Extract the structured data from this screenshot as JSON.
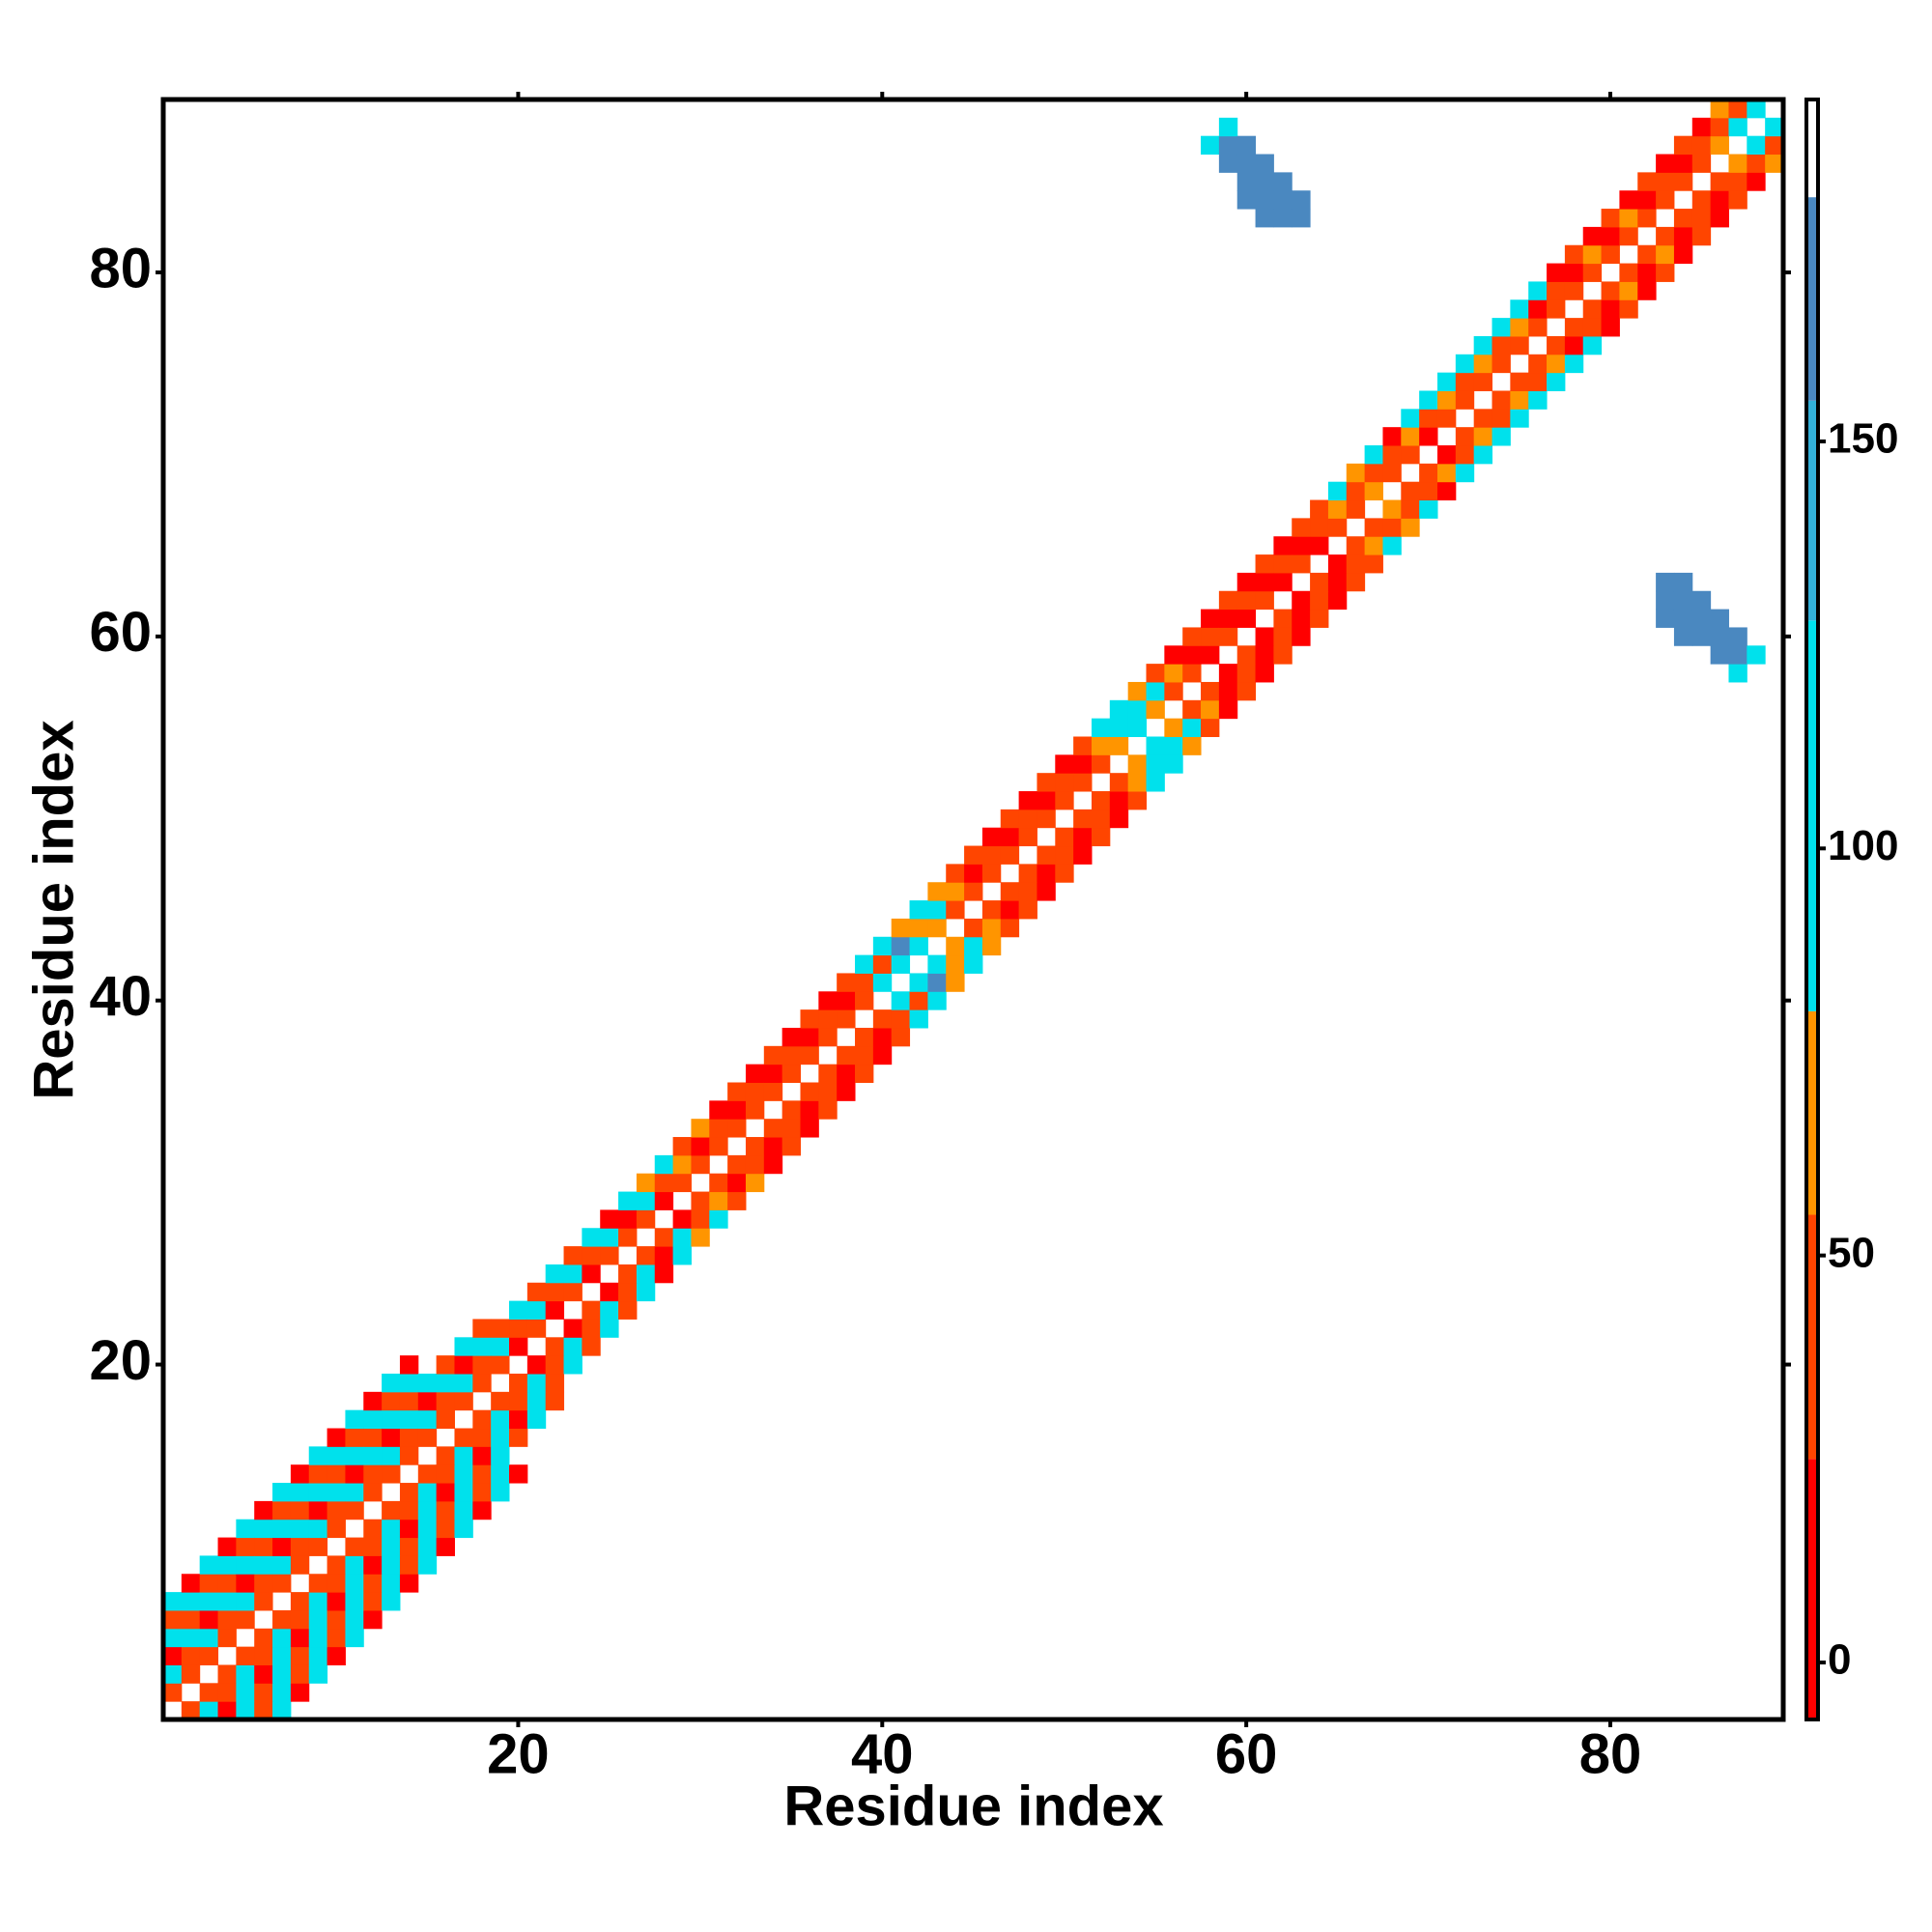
{
  "chart_data": {
    "type": "heatmap",
    "x_label": "Residue index",
    "y_label": "Residue index",
    "xlim": [
      0.5,
      89.5
    ],
    "ylim": [
      0.5,
      89.5
    ],
    "xticks": [
      20,
      40,
      60,
      80
    ],
    "yticks": [
      20,
      40,
      60,
      80
    ],
    "symmetric": true,
    "colorbar": {
      "lim": [
        -7,
        192
      ],
      "ticks": [
        0,
        50,
        100,
        150
      ],
      "bins": [
        {
          "from": -7,
          "to": 25,
          "color": "#ff0000"
        },
        {
          "from": 25,
          "to": 55,
          "color": "#ff4500"
        },
        {
          "from": 55,
          "to": 80,
          "color": "#ff9500"
        },
        {
          "from": 80,
          "to": 128,
          "color": "#00e1ec"
        },
        {
          "from": 128,
          "to": 155,
          "color": "#33b0d8"
        },
        {
          "from": 155,
          "to": 180,
          "color": "#4a88c0"
        },
        {
          "from": 180,
          "to": 192,
          "color": "#ffffff"
        }
      ]
    },
    "rows": [
      {
        "y": 1,
        "x": [
          2,
          3,
          4,
          5,
          6,
          7
        ],
        "values": [
          40,
          105,
          10,
          105,
          40,
          105
        ]
      },
      {
        "y": 2,
        "x": [
          3,
          4,
          5,
          6,
          7,
          8
        ],
        "values": [
          40,
          40,
          105,
          40,
          105,
          10
        ]
      },
      {
        "y": 3,
        "x": [
          4,
          5,
          6,
          7,
          8,
          9
        ],
        "values": [
          40,
          105,
          10,
          105,
          40,
          105
        ]
      },
      {
        "y": 4,
        "x": [
          5,
          6,
          7,
          8,
          9,
          10
        ],
        "values": [
          40,
          40,
          105,
          40,
          105,
          10
        ]
      },
      {
        "y": 5,
        "x": [
          6,
          7,
          8,
          9,
          10,
          11
        ],
        "values": [
          40,
          105,
          10,
          105,
          40,
          105
        ]
      },
      {
        "y": 6,
        "x": [
          7,
          8,
          9,
          10,
          11,
          12
        ],
        "values": [
          40,
          40,
          105,
          40,
          105,
          10
        ]
      },
      {
        "y": 7,
        "x": [
          8,
          9,
          10,
          11,
          12,
          13
        ],
        "values": [
          40,
          105,
          10,
          105,
          40,
          105
        ]
      },
      {
        "y": 8,
        "x": [
          9,
          10,
          11,
          12,
          13,
          14
        ],
        "values": [
          40,
          40,
          105,
          40,
          105,
          10
        ]
      },
      {
        "y": 9,
        "x": [
          10,
          11,
          12,
          13,
          14,
          15
        ],
        "values": [
          40,
          105,
          10,
          105,
          40,
          105
        ]
      },
      {
        "y": 10,
        "x": [
          11,
          12,
          13,
          14,
          15,
          16
        ],
        "values": [
          40,
          40,
          105,
          40,
          105,
          10
        ]
      },
      {
        "y": 11,
        "x": [
          12,
          13,
          14,
          15,
          16,
          17
        ],
        "values": [
          40,
          105,
          10,
          105,
          40,
          105
        ]
      },
      {
        "y": 12,
        "x": [
          13,
          14,
          15,
          16,
          17,
          18
        ],
        "values": [
          40,
          40,
          105,
          40,
          105,
          10
        ]
      },
      {
        "y": 13,
        "x": [
          14,
          15,
          16,
          17,
          18,
          19
        ],
        "values": [
          40,
          105,
          10,
          105,
          40,
          105
        ]
      },
      {
        "y": 14,
        "x": [
          15,
          16,
          17,
          18,
          19,
          20
        ],
        "values": [
          40,
          40,
          105,
          40,
          105,
          10
        ]
      },
      {
        "y": 15,
        "x": [
          16,
          17,
          18,
          19
        ],
        "values": [
          40,
          105,
          10,
          105
        ]
      },
      {
        "y": 16,
        "x": [
          17,
          18,
          19,
          20
        ],
        "values": [
          40,
          40,
          105,
          40
        ]
      },
      {
        "y": 17,
        "x": [
          18,
          19,
          20,
          21
        ],
        "values": [
          40,
          105,
          10,
          105
        ]
      },
      {
        "y": 18,
        "x": [
          19,
          20,
          21,
          22
        ],
        "values": [
          40,
          40,
          105,
          40
        ]
      },
      {
        "y": 19,
        "x": [
          20,
          21,
          22
        ],
        "values": [
          40,
          105,
          40
        ]
      },
      {
        "y": 20,
        "x": [
          21,
          22,
          23
        ],
        "values": [
          10,
          40,
          105
        ]
      },
      {
        "y": 21,
        "x": [
          22,
          23,
          24
        ],
        "values": [
          40,
          105,
          40
        ]
      },
      {
        "y": 22,
        "x": [
          23,
          24,
          25
        ],
        "values": [
          10,
          40,
          105
        ]
      },
      {
        "y": 23,
        "x": [
          24,
          25,
          26
        ],
        "values": [
          40,
          105,
          40
        ]
      },
      {
        "y": 24,
        "x": [
          25,
          26,
          27
        ],
        "values": [
          10,
          40,
          105
        ]
      },
      {
        "y": 25,
        "x": [
          26,
          27,
          28
        ],
        "values": [
          40,
          105,
          10
        ]
      },
      {
        "y": 26,
        "x": [
          27,
          28,
          29
        ],
        "values": [
          40,
          10,
          105
        ]
      },
      {
        "y": 27,
        "x": [
          28,
          29,
          30
        ],
        "values": [
          40,
          105,
          68
        ]
      },
      {
        "y": 28,
        "x": [
          29,
          30,
          31
        ],
        "values": [
          10,
          40,
          105
        ]
      },
      {
        "y": 29,
        "x": [
          30,
          31,
          32
        ],
        "values": [
          40,
          68,
          40
        ]
      },
      {
        "y": 30,
        "x": [
          31,
          32,
          33
        ],
        "values": [
          40,
          10,
          68
        ]
      },
      {
        "y": 31,
        "x": [
          32,
          33,
          34
        ],
        "values": [
          40,
          40,
          10
        ]
      },
      {
        "y": 32,
        "x": [
          33,
          34,
          35
        ],
        "values": [
          40,
          10,
          40
        ]
      },
      {
        "y": 33,
        "x": [
          34,
          35,
          36
        ],
        "values": [
          40,
          40,
          10
        ]
      },
      {
        "y": 34,
        "x": [
          35,
          36,
          37
        ],
        "values": [
          40,
          10,
          40
        ]
      },
      {
        "y": 35,
        "x": [
          36,
          37,
          38
        ],
        "values": [
          40,
          40,
          10
        ]
      },
      {
        "y": 36,
        "x": [
          37,
          38,
          39
        ],
        "values": [
          40,
          10,
          40
        ]
      },
      {
        "y": 37,
        "x": [
          38,
          39,
          40
        ],
        "values": [
          40,
          40,
          10
        ]
      },
      {
        "y": 38,
        "x": [
          39,
          40,
          41
        ],
        "values": [
          40,
          10,
          40
        ]
      },
      {
        "y": 39,
        "x": [
          40,
          41,
          42
        ],
        "values": [
          40,
          40,
          105
        ]
      },
      {
        "y": 40,
        "x": [
          41,
          42,
          43
        ],
        "values": [
          105,
          40,
          105
        ]
      },
      {
        "y": 41,
        "x": [
          42,
          43,
          44
        ],
        "values": [
          105,
          160,
          68
        ]
      },
      {
        "y": 42,
        "x": [
          43,
          44,
          45
        ],
        "values": [
          105,
          68,
          105
        ]
      },
      {
        "y": 43,
        "x": [
          44,
          45,
          46
        ],
        "values": [
          68,
          105,
          68
        ]
      },
      {
        "y": 44,
        "x": [
          45,
          46,
          47
        ],
        "values": [
          40,
          68,
          40
        ]
      },
      {
        "y": 45,
        "x": [
          46,
          47,
          48
        ],
        "values": [
          40,
          10,
          40
        ]
      },
      {
        "y": 46,
        "x": [
          47,
          48,
          49
        ],
        "values": [
          40,
          40,
          10
        ]
      },
      {
        "y": 47,
        "x": [
          48,
          49,
          50
        ],
        "values": [
          40,
          10,
          40
        ]
      },
      {
        "y": 48,
        "x": [
          49,
          50,
          51
        ],
        "values": [
          40,
          40,
          10
        ]
      },
      {
        "y": 49,
        "x": [
          50,
          51,
          52
        ],
        "values": [
          40,
          10,
          40
        ]
      },
      {
        "y": 50,
        "x": [
          51,
          52,
          53
        ],
        "values": [
          40,
          40,
          10
        ]
      },
      {
        "y": 51,
        "x": [
          52,
          53,
          54
        ],
        "values": [
          40,
          10,
          40
        ]
      },
      {
        "y": 52,
        "x": [
          53,
          54,
          55
        ],
        "values": [
          40,
          68,
          105
        ]
      },
      {
        "y": 53,
        "x": [
          54,
          55,
          56
        ],
        "values": [
          68,
          105,
          105
        ]
      },
      {
        "y": 54,
        "x": [
          55,
          56,
          57
        ],
        "values": [
          105,
          105,
          68
        ]
      },
      {
        "y": 55,
        "x": [
          56,
          57,
          58
        ],
        "values": [
          68,
          105,
          40
        ]
      },
      {
        "y": 56,
        "x": [
          57,
          58,
          59
        ],
        "values": [
          40,
          68,
          10
        ]
      },
      {
        "y": 57,
        "x": [
          58,
          59,
          60
        ],
        "values": [
          40,
          10,
          40
        ]
      },
      {
        "y": 58,
        "x": [
          59,
          60,
          61,
          87
        ],
        "values": [
          10,
          40,
          10,
          105
        ]
      },
      {
        "y": 59,
        "x": [
          60,
          61,
          62,
          86,
          87,
          88
        ],
        "values": [
          40,
          10,
          40,
          160,
          160,
          105
        ]
      },
      {
        "y": 60,
        "x": [
          61,
          62,
          63,
          84,
          85,
          86,
          87
        ],
        "values": [
          10,
          40,
          10,
          160,
          160,
          160,
          160
        ]
      },
      {
        "y": 61,
        "x": [
          62,
          63,
          64,
          83,
          84,
          85,
          86
        ],
        "values": [
          40,
          10,
          40,
          160,
          160,
          160,
          160
        ]
      },
      {
        "y": 62,
        "x": [
          63,
          64,
          65,
          83,
          84,
          85
        ],
        "values": [
          10,
          40,
          10,
          160,
          160,
          160
        ]
      },
      {
        "y": 63,
        "x": [
          64,
          65,
          66,
          83,
          84
        ],
        "values": [
          40,
          10,
          40,
          160,
          160
        ]
      },
      {
        "y": 64,
        "x": [
          65,
          66,
          67
        ],
        "values": [
          10,
          40,
          40
        ]
      },
      {
        "y": 65,
        "x": [
          66,
          67,
          68
        ],
        "values": [
          40,
          68,
          105
        ]
      },
      {
        "y": 66,
        "x": [
          67,
          68,
          69
        ],
        "values": [
          40,
          40,
          68
        ]
      },
      {
        "y": 67,
        "x": [
          68,
          69,
          70
        ],
        "values": [
          68,
          40,
          105
        ]
      },
      {
        "y": 68,
        "x": [
          69,
          70,
          71
        ],
        "values": [
          40,
          40,
          10
        ]
      },
      {
        "y": 69,
        "x": [
          70,
          71,
          72
        ],
        "values": [
          40,
          68,
          105
        ]
      },
      {
        "y": 70,
        "x": [
          71,
          72,
          73
        ],
        "values": [
          10,
          40,
          105
        ]
      },
      {
        "y": 71,
        "x": [
          72,
          73,
          74
        ],
        "values": [
          40,
          68,
          105
        ]
      },
      {
        "y": 72,
        "x": [
          73,
          74,
          75
        ],
        "values": [
          40,
          40,
          105
        ]
      },
      {
        "y": 73,
        "x": [
          74,
          75,
          76
        ],
        "values": [
          40,
          68,
          105
        ]
      },
      {
        "y": 74,
        "x": [
          75,
          76,
          77
        ],
        "values": [
          40,
          40,
          105
        ]
      },
      {
        "y": 75,
        "x": [
          76,
          77,
          78
        ],
        "values": [
          40,
          68,
          105
        ]
      },
      {
        "y": 76,
        "x": [
          77,
          78,
          79
        ],
        "values": [
          40,
          10,
          105
        ]
      },
      {
        "y": 77,
        "x": [
          78,
          79,
          80
        ],
        "values": [
          40,
          40,
          10
        ]
      },
      {
        "y": 78,
        "x": [
          79,
          80,
          81
        ],
        "values": [
          40,
          10,
          40
        ]
      },
      {
        "y": 79,
        "x": [
          80,
          81,
          82
        ],
        "values": [
          40,
          68,
          10
        ]
      },
      {
        "y": 80,
        "x": [
          81,
          82,
          83
        ],
        "values": [
          40,
          10,
          40
        ]
      },
      {
        "y": 81,
        "x": [
          82,
          83,
          84
        ],
        "values": [
          40,
          68,
          10
        ]
      },
      {
        "y": 82,
        "x": [
          83,
          84,
          85
        ],
        "values": [
          40,
          10,
          40
        ]
      },
      {
        "y": 83,
        "x": [
          84,
          85,
          86
        ],
        "values": [
          40,
          40,
          10
        ]
      },
      {
        "y": 84,
        "x": [
          85,
          86,
          87
        ],
        "values": [
          40,
          10,
          40
        ]
      },
      {
        "y": 85,
        "x": [
          86,
          87,
          88
        ],
        "values": [
          40,
          40,
          10
        ]
      },
      {
        "y": 86,
        "x": [
          87,
          88,
          89
        ],
        "values": [
          68,
          40,
          68
        ]
      },
      {
        "y": 87,
        "x": [
          88,
          89
        ],
        "values": [
          105,
          40
        ]
      },
      {
        "y": 88,
        "x": [
          89
        ],
        "values": [
          105
        ]
      }
    ]
  }
}
